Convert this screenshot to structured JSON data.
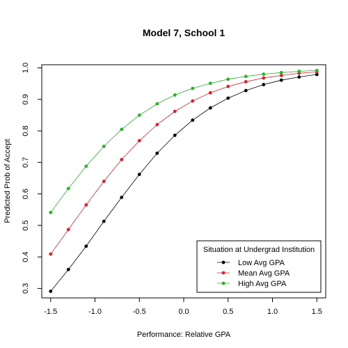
{
  "chart_data": {
    "type": "line",
    "title": "Model 7, School 1",
    "xlabel": "Performance: Relative GPA",
    "ylabel": "Predicted Prob of Accept",
    "xlim": [
      -1.6,
      1.6
    ],
    "ylim": [
      0.27,
      1.01
    ],
    "x_ticks": [
      -1.5,
      -1.0,
      -0.5,
      0.0,
      0.5,
      1.0,
      1.5
    ],
    "x_tick_labels": [
      "-1.5",
      "-1.0",
      "-0.5",
      "0.0",
      "0.5",
      "1.0",
      "1.5"
    ],
    "y_ticks": [
      0.3,
      0.4,
      0.5,
      0.6,
      0.7,
      0.8,
      0.9,
      1.0
    ],
    "y_tick_labels": [
      "0.3",
      "0.4",
      "0.5",
      "0.6",
      "0.7",
      "0.8",
      "0.9",
      "1.0"
    ],
    "grid": false,
    "legend": {
      "title": "Situation at Undergrad Institution",
      "position": "bottom-right"
    },
    "x": [
      -1.5,
      -1.3,
      -1.1,
      -0.9,
      -0.7,
      -0.5,
      -0.3,
      -0.1,
      0.1,
      0.3,
      0.5,
      0.7,
      0.9,
      1.1,
      1.3,
      1.5
    ],
    "series": [
      {
        "name": "Low Avg GPA",
        "color": "#000000",
        "values": [
          0.291,
          0.36,
          0.434,
          0.513,
          0.589,
          0.662,
          0.729,
          0.786,
          0.834,
          0.873,
          0.904,
          0.928,
          0.947,
          0.961,
          0.971,
          0.979
        ]
      },
      {
        "name": "Mean Avg GPA",
        "color": "#DF1F2B",
        "values": [
          0.409,
          0.487,
          0.565,
          0.64,
          0.709,
          0.769,
          0.82,
          0.862,
          0.895,
          0.921,
          0.941,
          0.956,
          0.968,
          0.976,
          0.983,
          0.987
        ]
      },
      {
        "name": "High Avg GPA",
        "color": "#28B328",
        "values": [
          0.541,
          0.617,
          0.688,
          0.751,
          0.805,
          0.85,
          0.886,
          0.914,
          0.935,
          0.951,
          0.964,
          0.973,
          0.98,
          0.985,
          0.989,
          0.992
        ]
      }
    ]
  }
}
